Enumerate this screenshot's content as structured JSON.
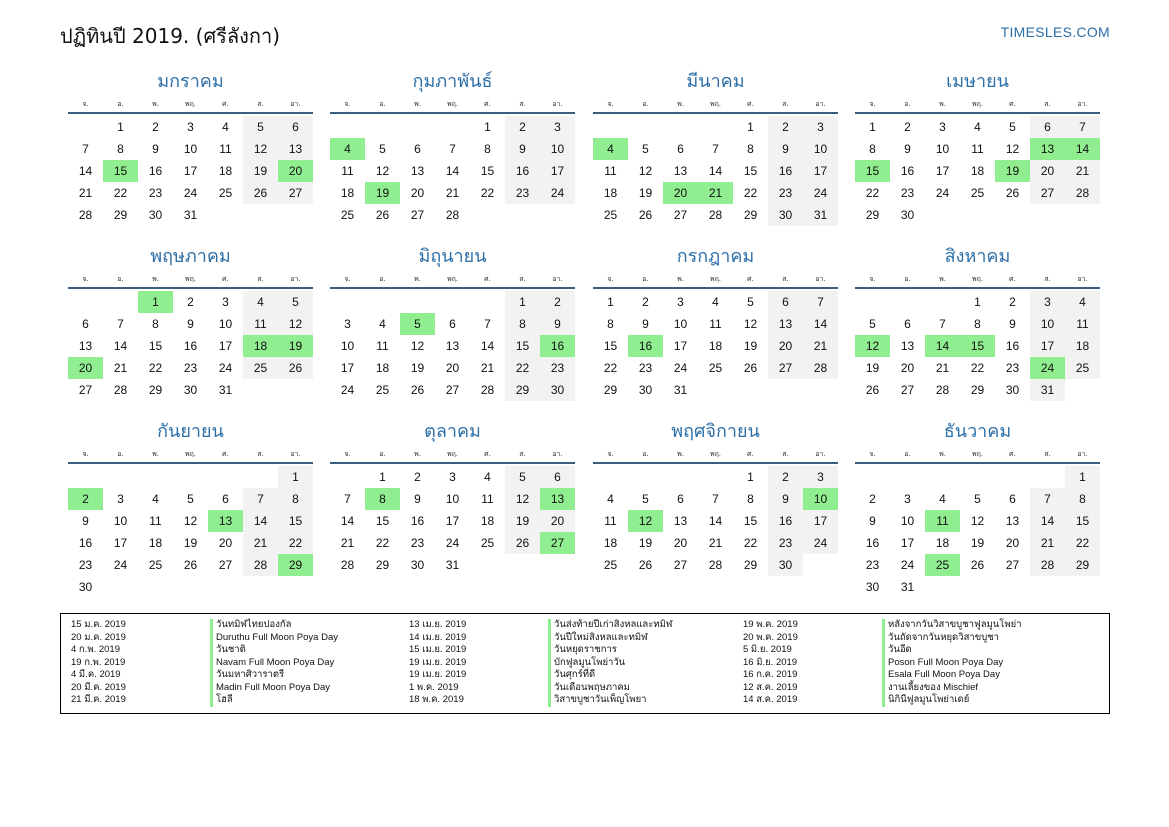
{
  "title": "ปฏิทินปี 2019. (ศรีลังกา)",
  "brand": "TIMESLES.COM",
  "weekdays": [
    "จ.",
    "อ.",
    "พ.",
    "พฤ.",
    "ศ.",
    "ส.",
    "อา."
  ],
  "colors": {
    "accent": "#2c6fa8",
    "holiday": "#90ee90",
    "weekend": "#f2f2f2"
  },
  "months": [
    {
      "name": "มกราคม",
      "offset": 1,
      "days": 31,
      "holidays": [
        15,
        20
      ]
    },
    {
      "name": "กุมภาพันธ์",
      "offset": 4,
      "days": 28,
      "holidays": [
        4,
        19
      ]
    },
    {
      "name": "มีนาคม",
      "offset": 4,
      "days": 31,
      "holidays": [
        4,
        20,
        21
      ]
    },
    {
      "name": "เมษายน",
      "offset": 0,
      "days": 30,
      "holidays": [
        13,
        14,
        15,
        19
      ]
    },
    {
      "name": "พฤษภาคม",
      "offset": 2,
      "days": 31,
      "holidays": [
        1,
        18,
        19,
        20
      ]
    },
    {
      "name": "มิถุนายน",
      "offset": 5,
      "days": 30,
      "holidays": [
        5,
        16
      ]
    },
    {
      "name": "กรกฎาคม",
      "offset": 0,
      "days": 31,
      "holidays": [
        16
      ]
    },
    {
      "name": "สิงหาคม",
      "offset": 3,
      "days": 31,
      "holidays": [
        12,
        14,
        15,
        24
      ]
    },
    {
      "name": "กันยายน",
      "offset": 6,
      "days": 30,
      "holidays": [
        2,
        13,
        29
      ]
    },
    {
      "name": "ตุลาคม",
      "offset": 1,
      "days": 31,
      "holidays": [
        8,
        13,
        27
      ]
    },
    {
      "name": "พฤศจิกายน",
      "offset": 4,
      "days": 30,
      "holidays": [
        10,
        12
      ]
    },
    {
      "name": "ธันวาคม",
      "offset": 6,
      "days": 31,
      "holidays": [
        11,
        25
      ]
    }
  ],
  "holiday_list": [
    [
      {
        "date": "15 ม.ค. 2019",
        "name": "วันทมิฬไทยปองกัล"
      },
      {
        "date": "20 ม.ค. 2019",
        "name": "Duruthu Full Moon Poya Day"
      },
      {
        "date": "4 ก.พ. 2019",
        "name": "วันชาติ"
      },
      {
        "date": "19 ก.พ. 2019",
        "name": "Navam Full Moon Poya Day"
      },
      {
        "date": "4 มี.ค. 2019",
        "name": "วันมหาศิวาราตรี"
      },
      {
        "date": "20 มี.ค. 2019",
        "name": "Madin Full Moon Poya Day"
      },
      {
        "date": "21 มี.ค. 2019",
        "name": "โฮลี"
      }
    ],
    [
      {
        "date": "13 เม.ย. 2019",
        "name": "วันส่งท้ายปีเก่าสิงหลและทมิฬ"
      },
      {
        "date": "14 เม.ย. 2019",
        "name": "วันปีใหม่สิงหลและทมิฬ"
      },
      {
        "date": "15 เม.ย. 2019",
        "name": "วันหยุดราชการ"
      },
      {
        "date": "19 เม.ย. 2019",
        "name": "บักฟูลมูนโพย่าวัน"
      },
      {
        "date": "19 เม.ย. 2019",
        "name": "วันศุกร์ที่ดี"
      },
      {
        "date": "1 พ.ค. 2019",
        "name": "วันเดือนพฤษภาคม"
      },
      {
        "date": "18 พ.ค. 2019",
        "name": "วิสาขบูชาวันเพ็ญโพยา"
      }
    ],
    [
      {
        "date": "19 พ.ค. 2019",
        "name": "หลังจากวันวิสาขบูชาฟูลมูนโพย่า"
      },
      {
        "date": "20 พ.ค. 2019",
        "name": "วันถัดจากวันหยุดวิสาขบูชา"
      },
      {
        "date": "5 มิ.ย. 2019",
        "name": "วันอีด"
      },
      {
        "date": "16 มิ.ย. 2019",
        "name": "Poson Full Moon Poya Day"
      },
      {
        "date": "16 ก.ค. 2019",
        "name": "Esala Full Moon Poya Day"
      },
      {
        "date": "12 ส.ค. 2019",
        "name": "งานเลี้ยงของ Mischief"
      },
      {
        "date": "14 ส.ค. 2019",
        "name": "นิกินีฟูลมูนโพย่าเดย์"
      }
    ]
  ]
}
